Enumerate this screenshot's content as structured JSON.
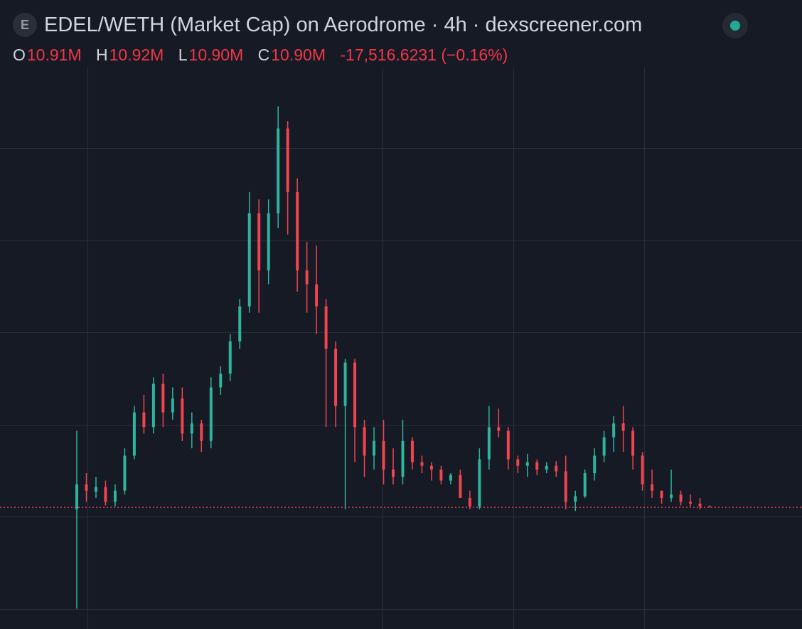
{
  "chart_data": {
    "type": "candlestick",
    "icon_letter": "E",
    "title": "EDEL/WETH (Market Cap) on Aerodrome · 4h · dexscreener.com",
    "header": {
      "open_key": "O",
      "open": "10.91M",
      "high_key": "H",
      "high": "10.92M",
      "low_key": "L",
      "low": "10.90M",
      "close_key": "C",
      "close": "10.90M",
      "change": "-17,516.6231 (−0.16%)"
    },
    "ylim": [
      9.58,
      15.67
    ],
    "up_color": "#2fb39c",
    "down_color": "#f0444f",
    "open": [
      10.88,
      11.15,
      11.07,
      11.12,
      10.96,
      11.08,
      11.46,
      11.93,
      11.77,
      12.24,
      11.93,
      12.08,
      11.7,
      11.81,
      11.62,
      12.2,
      12.35,
      12.7,
      13.08,
      14.09,
      13.47,
      14.09,
      15.01,
      14.32,
      13.47,
      13.32,
      13.08,
      12.62,
      12.0,
      12.47,
      11.77,
      11.46,
      11.62,
      11.31,
      11.23,
      11.62,
      11.39,
      11.35,
      11.31,
      11.19,
      11.25,
      11.0,
      10.91,
      11.42,
      11.77,
      11.73,
      11.42,
      11.35,
      11.39,
      11.31,
      11.35,
      11.29,
      10.96,
      11.02,
      11.27,
      11.46,
      11.66,
      11.81,
      11.73,
      11.46,
      11.15,
      11.08,
      11.0,
      11.04,
      10.96,
      10.94,
      10.91
    ],
    "high": [
      11.73,
      11.27,
      11.23,
      11.19,
      11.15,
      11.54,
      12.0,
      12.12,
      12.31,
      12.35,
      12.2,
      12.2,
      11.93,
      11.85,
      12.31,
      12.43,
      12.78,
      13.16,
      14.32,
      14.24,
      14.24,
      15.25,
      15.09,
      14.47,
      13.78,
      13.74,
      13.16,
      12.7,
      12.51,
      12.51,
      11.85,
      11.77,
      11.85,
      11.54,
      11.85,
      11.66,
      11.46,
      11.39,
      11.35,
      11.27,
      11.31,
      11.08,
      11.54,
      12.0,
      11.97,
      11.77,
      11.46,
      11.48,
      11.42,
      11.39,
      11.4,
      11.46,
      11.08,
      11.31,
      11.54,
      11.73,
      11.89,
      12.0,
      11.77,
      11.5,
      11.31,
      11.08,
      11.31,
      11.08,
      11.04,
      11.0,
      10.92
    ],
    "low": [
      9.8,
      10.96,
      11.0,
      10.92,
      10.91,
      11.04,
      11.42,
      11.7,
      11.7,
      11.77,
      11.85,
      11.62,
      11.54,
      11.5,
      11.54,
      12.12,
      12.27,
      12.62,
      13.01,
      13.01,
      13.32,
      13.93,
      13.86,
      13.24,
      13.01,
      12.78,
      11.77,
      11.77,
      10.88,
      11.39,
      11.23,
      11.31,
      11.15,
      11.15,
      11.15,
      11.31,
      11.27,
      11.19,
      11.15,
      11.15,
      11.0,
      10.88,
      10.88,
      11.31,
      11.66,
      11.31,
      11.27,
      11.23,
      11.25,
      11.27,
      11.23,
      10.88,
      10.86,
      11.0,
      11.19,
      11.39,
      11.5,
      11.5,
      11.31,
      11.08,
      11.0,
      10.94,
      10.96,
      10.92,
      10.91,
      10.88,
      10.9
    ],
    "close": [
      11.15,
      11.08,
      11.12,
      10.96,
      11.08,
      11.46,
      11.93,
      11.77,
      12.24,
      11.93,
      12.08,
      11.7,
      11.81,
      11.62,
      12.2,
      12.35,
      12.7,
      13.08,
      14.09,
      13.47,
      14.09,
      15.01,
      14.32,
      13.47,
      13.32,
      13.08,
      12.62,
      12.0,
      12.47,
      11.77,
      11.46,
      11.62,
      11.31,
      11.23,
      11.62,
      11.39,
      11.35,
      11.31,
      11.19,
      11.25,
      11.0,
      10.91,
      11.42,
      11.77,
      11.73,
      11.42,
      11.35,
      11.39,
      11.31,
      11.35,
      11.29,
      10.96,
      11.02,
      11.27,
      11.46,
      11.66,
      11.81,
      11.73,
      11.46,
      11.15,
      11.08,
      11.0,
      11.04,
      10.96,
      10.94,
      10.91,
      10.9
    ]
  }
}
